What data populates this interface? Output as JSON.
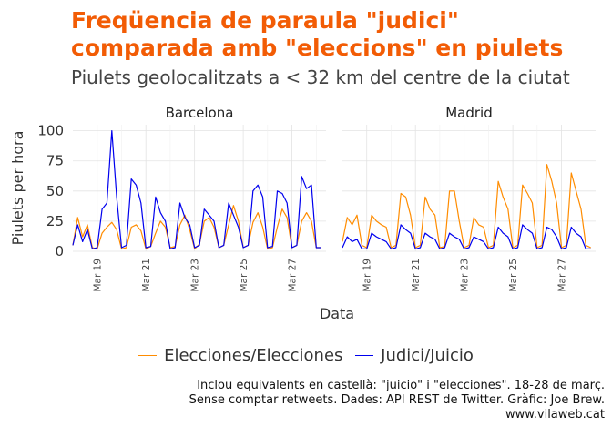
{
  "title_line1": "Freqüencia de paraula \"judici\"",
  "title_line2": "comparada amb \"eleccions\" en piulets",
  "subtitle": "Piulets geolocalitzats a < 32 km del centre de la ciutat",
  "caption_line1": "Inclou equivalents en castellà: \"juicio\" i \"elecciones\". 18-28 de març.",
  "caption_line2": "Sense comptar retweets. Dades: API REST de Twitter. Gràfic: Joe Brew.",
  "caption_line3": "www.vilaweb.cat",
  "colors": {
    "elecciones": "#ff8c00",
    "judici": "#0000ee",
    "title": "#f25c05"
  },
  "legend": [
    {
      "label": "Elecciones/Elecciones",
      "color": "#ff8c00"
    },
    {
      "label": "Judici/Juicio",
      "color": "#0000ee"
    }
  ],
  "chart_data": {
    "type": "line",
    "facets": [
      "Barcelona",
      "Madrid"
    ],
    "xlabel": "Data",
    "ylabel": "Piulets per hora",
    "ylim": [
      0,
      105
    ],
    "yticks": [
      0,
      25,
      50,
      75,
      100
    ],
    "x_range_days": [
      "Mar 18",
      "Mar 28"
    ],
    "xticks": [
      "Mar 19",
      "Mar 21",
      "Mar 23",
      "Mar 25",
      "Mar 27"
    ],
    "grid": true,
    "legend_position": "bottom",
    "series_names": [
      "Elecciones/Elecciones",
      "Judici/Juicio"
    ],
    "series": [
      {
        "facet": "Barcelona",
        "name": "Elecciones/Elecciones",
        "x": [
          18.0,
          18.2,
          18.4,
          18.6,
          18.8,
          19.0,
          19.2,
          19.4,
          19.6,
          19.8,
          20.0,
          20.2,
          20.4,
          20.6,
          20.8,
          21.0,
          21.2,
          21.4,
          21.6,
          21.8,
          22.0,
          22.2,
          22.4,
          22.6,
          22.8,
          23.0,
          23.2,
          23.4,
          23.6,
          23.8,
          24.0,
          24.2,
          24.4,
          24.6,
          24.8,
          25.0,
          25.2,
          25.4,
          25.6,
          25.8,
          26.0,
          26.2,
          26.4,
          26.6,
          26.8,
          27.0,
          27.2,
          27.4,
          27.6,
          27.8,
          28.0,
          28.2
        ],
        "values": [
          5,
          28,
          12,
          22,
          3,
          2,
          15,
          20,
          24,
          18,
          2,
          3,
          20,
          22,
          17,
          2,
          4,
          15,
          25,
          20,
          3,
          4,
          22,
          30,
          18,
          2,
          6,
          25,
          28,
          20,
          3,
          5,
          22,
          38,
          25,
          3,
          5,
          24,
          32,
          20,
          2,
          3,
          20,
          35,
          28,
          3,
          5,
          25,
          32,
          25,
          3,
          3
        ]
      },
      {
        "facet": "Barcelona",
        "name": "Judici/Juicio",
        "x": [
          18.0,
          18.2,
          18.4,
          18.6,
          18.8,
          19.0,
          19.2,
          19.4,
          19.6,
          19.8,
          20.0,
          20.2,
          20.4,
          20.6,
          20.8,
          21.0,
          21.2,
          21.4,
          21.6,
          21.8,
          22.0,
          22.2,
          22.4,
          22.6,
          22.8,
          23.0,
          23.2,
          23.4,
          23.6,
          23.8,
          24.0,
          24.2,
          24.4,
          24.6,
          24.8,
          25.0,
          25.2,
          25.4,
          25.6,
          25.8,
          26.0,
          26.2,
          26.4,
          26.6,
          26.8,
          27.0,
          27.2,
          27.4,
          27.6,
          27.8,
          28.0,
          28.2
        ],
        "values": [
          5,
          22,
          8,
          18,
          2,
          3,
          35,
          40,
          100,
          45,
          3,
          5,
          60,
          55,
          40,
          3,
          4,
          45,
          32,
          25,
          2,
          3,
          40,
          28,
          22,
          3,
          5,
          35,
          30,
          25,
          3,
          5,
          40,
          30,
          20,
          3,
          5,
          50,
          55,
          45,
          3,
          4,
          50,
          48,
          40,
          3,
          5,
          62,
          52,
          55,
          3,
          3
        ]
      },
      {
        "facet": "Madrid",
        "name": "Elecciones/Elecciones",
        "x": [
          18.0,
          18.2,
          18.4,
          18.6,
          18.8,
          19.0,
          19.2,
          19.4,
          19.6,
          19.8,
          20.0,
          20.2,
          20.4,
          20.6,
          20.8,
          21.0,
          21.2,
          21.4,
          21.6,
          21.8,
          22.0,
          22.2,
          22.4,
          22.6,
          22.8,
          23.0,
          23.2,
          23.4,
          23.6,
          23.8,
          24.0,
          24.2,
          24.4,
          24.6,
          24.8,
          25.0,
          25.2,
          25.4,
          25.6,
          25.8,
          26.0,
          26.2,
          26.4,
          26.6,
          26.8,
          27.0,
          27.2,
          27.4,
          27.6,
          27.8,
          28.0,
          28.2
        ],
        "values": [
          8,
          28,
          22,
          30,
          5,
          3,
          30,
          25,
          22,
          20,
          3,
          5,
          48,
          45,
          30,
          3,
          5,
          45,
          35,
          30,
          3,
          4,
          50,
          50,
          25,
          3,
          5,
          28,
          22,
          20,
          3,
          5,
          58,
          45,
          35,
          3,
          5,
          55,
          48,
          40,
          3,
          5,
          72,
          58,
          40,
          3,
          5,
          65,
          50,
          35,
          5,
          3
        ]
      },
      {
        "facet": "Madrid",
        "name": "Judici/Juicio",
        "x": [
          18.0,
          18.2,
          18.4,
          18.6,
          18.8,
          19.0,
          19.2,
          19.4,
          19.6,
          19.8,
          20.0,
          20.2,
          20.4,
          20.6,
          20.8,
          21.0,
          21.2,
          21.4,
          21.6,
          21.8,
          22.0,
          22.2,
          22.4,
          22.6,
          22.8,
          23.0,
          23.2,
          23.4,
          23.6,
          23.8,
          24.0,
          24.2,
          24.4,
          24.6,
          24.8,
          25.0,
          25.2,
          25.4,
          25.6,
          25.8,
          26.0,
          26.2,
          26.4,
          26.6,
          26.8,
          27.0,
          27.2,
          27.4,
          27.6,
          27.8,
          28.0,
          28.2
        ],
        "values": [
          3,
          12,
          8,
          10,
          2,
          2,
          15,
          12,
          10,
          8,
          2,
          3,
          22,
          18,
          15,
          2,
          3,
          15,
          12,
          10,
          2,
          3,
          15,
          12,
          10,
          2,
          3,
          12,
          10,
          8,
          2,
          3,
          20,
          15,
          12,
          2,
          3,
          22,
          18,
          15,
          2,
          3,
          20,
          18,
          12,
          2,
          3,
          20,
          15,
          12,
          2,
          2
        ]
      }
    ]
  }
}
